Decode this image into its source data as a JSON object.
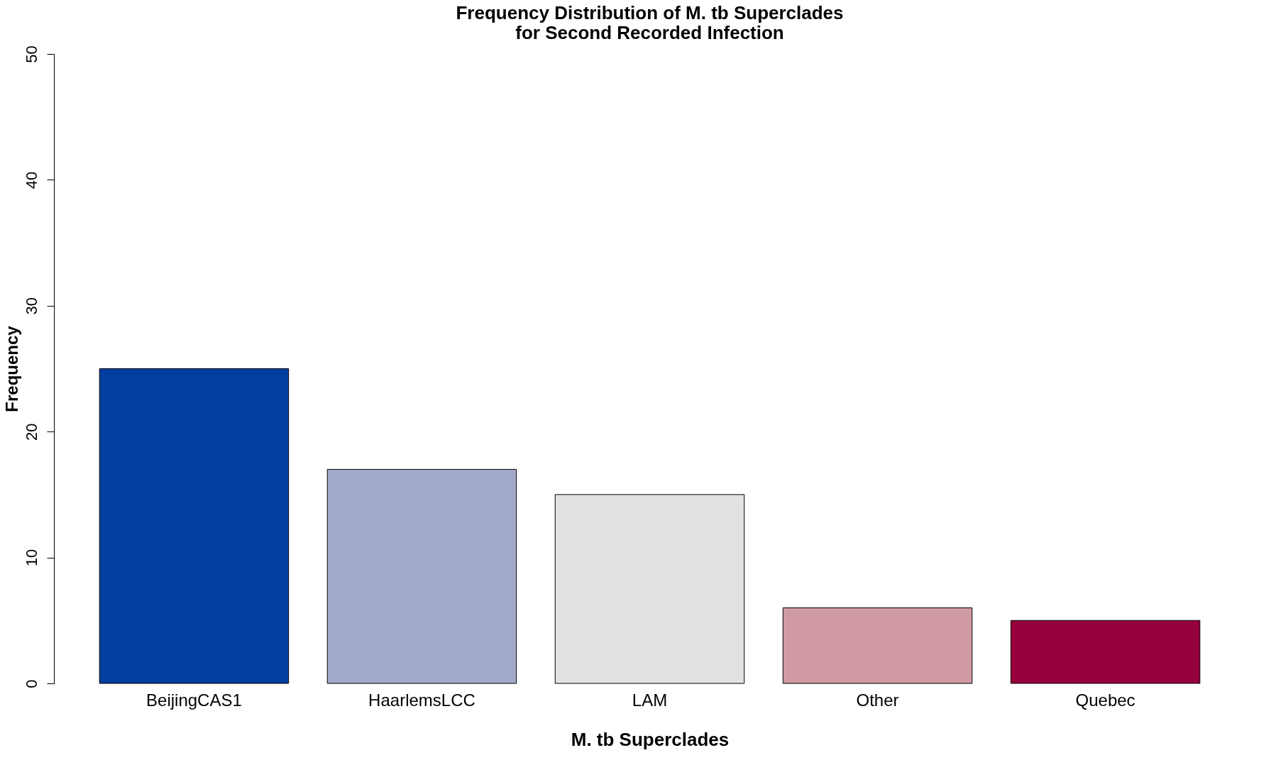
{
  "chart_data": {
    "type": "bar",
    "title": "Frequency Distribution of M. tb Superclades\nfor Second Recorded Infection",
    "xlabel": "M. tb Superclades",
    "ylabel": "Frequency",
    "categories": [
      "BeijingCAS1",
      "HaarlemsLCC",
      "LAM",
      "Other",
      "Quebec"
    ],
    "values": [
      25,
      17,
      15,
      6,
      5
    ],
    "colors": [
      "#003f9f",
      "#a2a8c8",
      "#e2e2e2",
      "#d09aa2",
      "#96003c"
    ],
    "ylim": [
      0,
      50
    ],
    "yticks": [
      0,
      10,
      20,
      30,
      40,
      50
    ],
    "grid": false,
    "legend": false
  }
}
